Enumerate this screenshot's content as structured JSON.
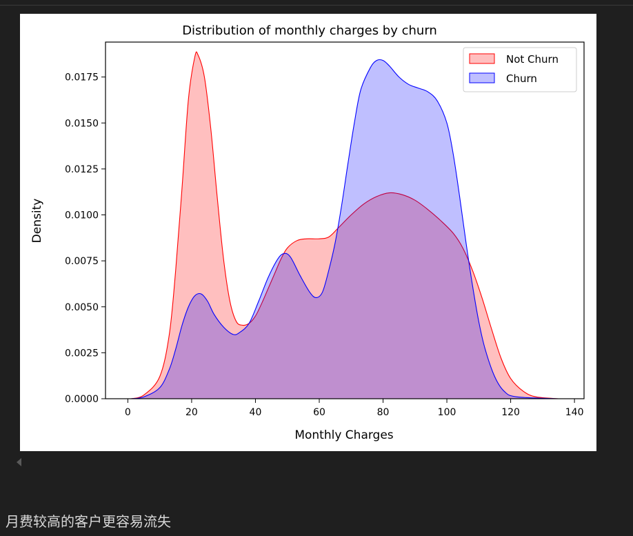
{
  "caption": "月费较高的客户更容易流失",
  "chart_data": {
    "type": "area",
    "title": "Distribution of monthly charges by churn",
    "xlabel": "Monthly Charges",
    "ylabel": "Density",
    "xlim": [
      -7,
      143
    ],
    "ylim": [
      0,
      0.0194
    ],
    "xticks": [
      "0",
      "20",
      "40",
      "60",
      "80",
      "100",
      "120",
      "140"
    ],
    "yticks": [
      "0.0000",
      "0.0025",
      "0.0050",
      "0.0075",
      "0.0100",
      "0.0125",
      "0.0150",
      "0.0175"
    ],
    "legend_position": "upper-right",
    "series": [
      {
        "name": "Not Churn",
        "color": "#ff0000",
        "fill": "#ffbfbf",
        "points": [
          [
            1,
            0
          ],
          [
            5,
            0.0002
          ],
          [
            10,
            0.0012
          ],
          [
            13,
            0.0035
          ],
          [
            15,
            0.007
          ],
          [
            17,
            0.0115
          ],
          [
            19,
            0.0163
          ],
          [
            21,
            0.0186
          ],
          [
            22,
            0.0187
          ],
          [
            24,
            0.0175
          ],
          [
            26,
            0.0147
          ],
          [
            28,
            0.011
          ],
          [
            30,
            0.0076
          ],
          [
            32,
            0.0053
          ],
          [
            34,
            0.0042
          ],
          [
            36,
            0.004
          ],
          [
            38,
            0.0041
          ],
          [
            40,
            0.0045
          ],
          [
            42,
            0.0052
          ],
          [
            44,
            0.006
          ],
          [
            46,
            0.0068
          ],
          [
            48,
            0.0076
          ],
          [
            50,
            0.0082
          ],
          [
            53,
            0.0086
          ],
          [
            56,
            0.0087
          ],
          [
            60,
            0.0087
          ],
          [
            63,
            0.0088
          ],
          [
            66,
            0.0093
          ],
          [
            70,
            0.01
          ],
          [
            74,
            0.0106
          ],
          [
            78,
            0.011
          ],
          [
            82,
            0.0112
          ],
          [
            86,
            0.0111
          ],
          [
            90,
            0.0108
          ],
          [
            94,
            0.0103
          ],
          [
            98,
            0.0097
          ],
          [
            102,
            0.009
          ],
          [
            105,
            0.0082
          ],
          [
            108,
            0.007
          ],
          [
            111,
            0.0055
          ],
          [
            114,
            0.0038
          ],
          [
            117,
            0.0022
          ],
          [
            120,
            0.0011
          ],
          [
            124,
            0.0004
          ],
          [
            128,
            0.0001
          ],
          [
            135,
            0
          ]
        ]
      },
      {
        "name": "Churn",
        "color": "#0000ff",
        "fill": "#bfbfff",
        "points": [
          [
            1,
            0
          ],
          [
            5,
            0.0001
          ],
          [
            10,
            0.0006
          ],
          [
            13,
            0.0016
          ],
          [
            15,
            0.0027
          ],
          [
            17,
            0.004
          ],
          [
            19,
            0.005
          ],
          [
            21,
            0.0056
          ],
          [
            23,
            0.0057
          ],
          [
            25,
            0.0053
          ],
          [
            27,
            0.0046
          ],
          [
            30,
            0.0039
          ],
          [
            33,
            0.0035
          ],
          [
            35,
            0.0036
          ],
          [
            38,
            0.0041
          ],
          [
            41,
            0.0053
          ],
          [
            44,
            0.0066
          ],
          [
            47,
            0.0076
          ],
          [
            49,
            0.0079
          ],
          [
            51,
            0.0077
          ],
          [
            54,
            0.0067
          ],
          [
            57,
            0.0058
          ],
          [
            59,
            0.0055
          ],
          [
            61,
            0.0058
          ],
          [
            63,
            0.007
          ],
          [
            65,
            0.0085
          ],
          [
            67,
            0.0105
          ],
          [
            69,
            0.0128
          ],
          [
            71,
            0.015
          ],
          [
            73,
            0.0168
          ],
          [
            76,
            0.018
          ],
          [
            78,
            0.0184
          ],
          [
            80,
            0.0184
          ],
          [
            82,
            0.0181
          ],
          [
            85,
            0.0175
          ],
          [
            88,
            0.0171
          ],
          [
            91,
            0.0169
          ],
          [
            94,
            0.0167
          ],
          [
            97,
            0.0162
          ],
          [
            100,
            0.015
          ],
          [
            102,
            0.0133
          ],
          [
            104,
            0.011
          ],
          [
            106,
            0.0085
          ],
          [
            108,
            0.0062
          ],
          [
            110,
            0.0042
          ],
          [
            112,
            0.0027
          ],
          [
            115,
            0.0012
          ],
          [
            118,
            0.0004
          ],
          [
            122,
            0.0001
          ],
          [
            135,
            0
          ]
        ]
      }
    ]
  }
}
